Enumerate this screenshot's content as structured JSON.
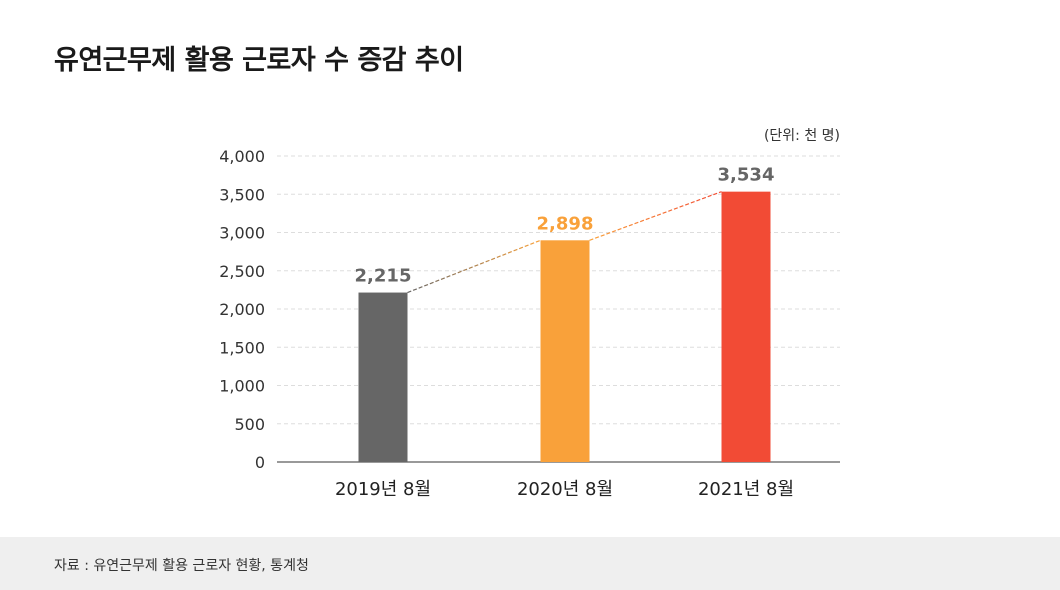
{
  "title": "유연근무제 활용 근로자 수 증감 추이",
  "chart_data": {
    "type": "bar",
    "unit_label": "(단위: 천 명)",
    "categories": [
      "2019년 8월",
      "2020년 8월",
      "2021년 8월"
    ],
    "values": [
      2215,
      2898,
      3534
    ],
    "value_labels": [
      "2,215",
      "2,898",
      "3,534"
    ],
    "colors": [
      "#666666",
      "#F9A13A",
      "#F24B35"
    ],
    "label_colors": [
      "#666666",
      "#F9A13A",
      "#666666"
    ],
    "ylim": [
      0,
      4000
    ],
    "yticks": [
      0,
      500,
      1000,
      1500,
      2000,
      2500,
      3000,
      3500,
      4000
    ],
    "ytick_labels": [
      "0",
      "500",
      "1,000",
      "1,500",
      "2,000",
      "2,500",
      "3,000",
      "3,500",
      "4,000"
    ],
    "grid": true,
    "trend_line": "dashed"
  },
  "footer": {
    "source": "자료 : 유연근무제 활용 근로자 현황, 통계청"
  }
}
